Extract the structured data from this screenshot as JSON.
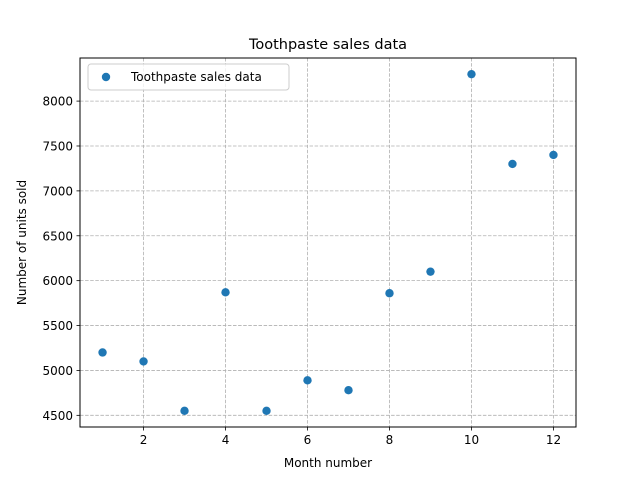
{
  "chart_data": {
    "type": "scatter",
    "title": "Toothpaste sales data",
    "xlabel": "Month number",
    "ylabel": "Number of units sold",
    "xlim": [
      0.45,
      12.55
    ],
    "ylim": [
      4370,
      8480
    ],
    "xticks": [
      2,
      4,
      6,
      8,
      10,
      12
    ],
    "yticks": [
      4500,
      5000,
      5500,
      6000,
      6500,
      7000,
      7500,
      8000
    ],
    "grid": true,
    "grid_style": "dashed",
    "legend_position": "top-left",
    "series": [
      {
        "name": "Toothpaste sales data",
        "color": "#1f77b4",
        "x": [
          1,
          2,
          3,
          4,
          5,
          6,
          7,
          8,
          9,
          10,
          11,
          12
        ],
        "y": [
          5200,
          5100,
          4550,
          5870,
          4550,
          4890,
          4780,
          5860,
          6100,
          8300,
          7300,
          7400
        ]
      }
    ]
  }
}
